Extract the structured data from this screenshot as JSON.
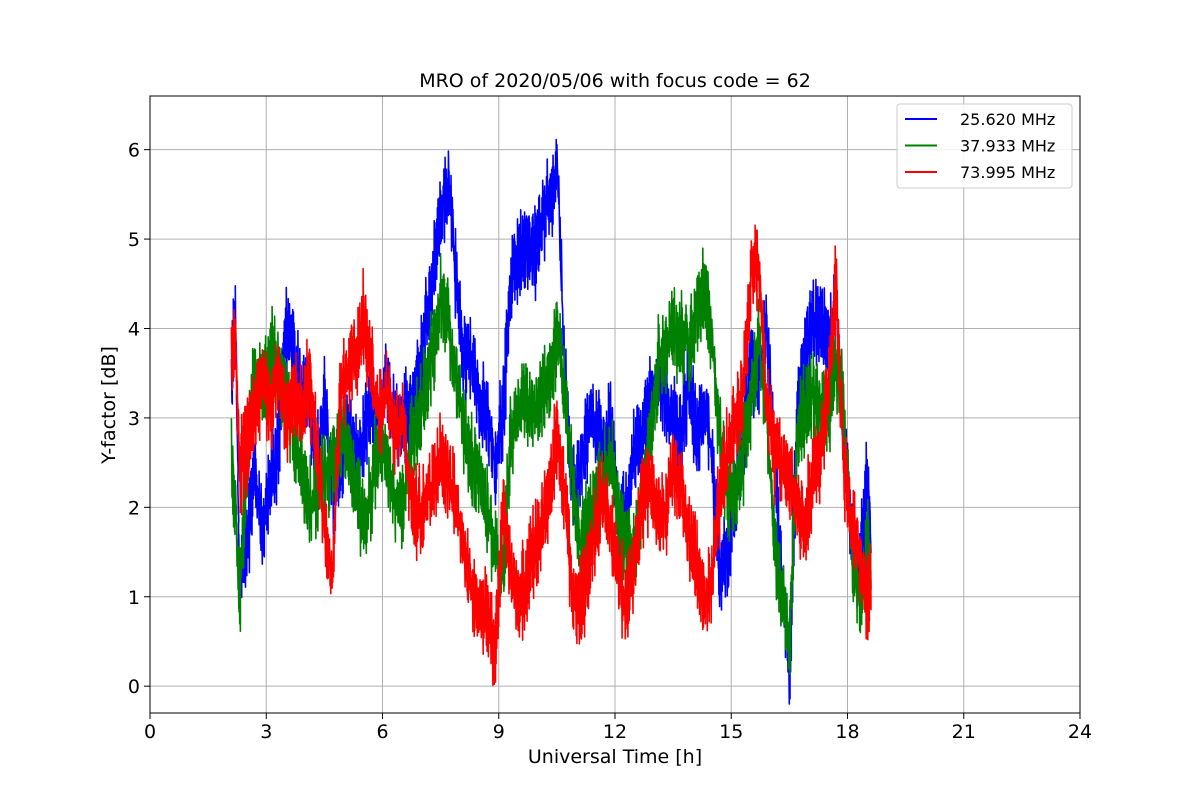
{
  "chart_data": {
    "type": "line",
    "title": "MRO of 2020/05/06 with focus code = 62",
    "xlabel": "Universal Time [h]",
    "ylabel": "Y-factor [dB]",
    "xlim": [
      0,
      24
    ],
    "ylim": [
      -0.3,
      6.6
    ],
    "xticks": [
      0,
      3,
      6,
      9,
      12,
      15,
      18,
      21,
      24
    ],
    "yticks": [
      0,
      1,
      2,
      3,
      4,
      5,
      6
    ],
    "grid": true,
    "legend_position": "top-right",
    "series": [
      {
        "name": "25.620 MHz",
        "color": "#0000ff",
        "x": [
          2.1,
          2.2,
          2.3,
          2.5,
          2.7,
          2.9,
          3.1,
          3.3,
          3.5,
          3.7,
          3.9,
          4.1,
          4.3,
          4.5,
          4.7,
          4.9,
          5.1,
          5.3,
          5.5,
          5.7,
          5.9,
          6.1,
          6.3,
          6.5,
          6.7,
          6.9,
          7.1,
          7.3,
          7.5,
          7.7,
          7.9,
          8.1,
          8.3,
          8.5,
          8.7,
          8.9,
          9.1,
          9.3,
          9.5,
          9.7,
          9.9,
          10.1,
          10.3,
          10.5,
          10.7,
          10.9,
          11.1,
          11.3,
          11.5,
          11.7,
          11.9,
          12.1,
          12.3,
          12.5,
          12.7,
          12.9,
          13.1,
          13.3,
          13.5,
          13.7,
          13.9,
          14.1,
          14.3,
          14.5,
          14.7,
          14.9,
          15.1,
          15.3,
          15.5,
          15.7,
          15.9,
          16.1,
          16.3,
          16.5,
          16.7,
          16.9,
          17.1,
          17.3,
          17.5,
          17.7,
          17.9,
          18.1,
          18.3,
          18.5,
          18.6
        ],
        "y": [
          3.5,
          4.2,
          1.2,
          1.6,
          2.5,
          1.7,
          2.4,
          2.6,
          4.0,
          3.8,
          3.3,
          3.2,
          2.4,
          3.2,
          2.2,
          2.5,
          2.9,
          2.5,
          2.8,
          3.3,
          2.9,
          3.4,
          3.0,
          3.0,
          3.1,
          3.3,
          4.0,
          4.6,
          5.3,
          5.6,
          4.5,
          3.6,
          3.7,
          3.2,
          3.0,
          2.4,
          3.1,
          4.5,
          4.8,
          4.9,
          4.8,
          5.2,
          5.5,
          5.8,
          3.5,
          2.1,
          2.4,
          2.9,
          3.0,
          2.7,
          2.9,
          1.7,
          2.0,
          2.6,
          2.8,
          3.2,
          3.5,
          3.2,
          3.0,
          2.7,
          3.4,
          2.8,
          3.1,
          2.6,
          1.3,
          1.4,
          2.2,
          2.8,
          3.5,
          3.4,
          4.0,
          2.6,
          1.1,
          0.2,
          3.2,
          3.6,
          4.0,
          4.1,
          3.8,
          4.3,
          2.7,
          1.7,
          1.3,
          2.3,
          1.5
        ]
      },
      {
        "name": "37.933 MHz",
        "color": "#008000",
        "x": [
          2.1,
          2.2,
          2.3,
          2.5,
          2.7,
          2.9,
          3.1,
          3.3,
          3.5,
          3.7,
          3.9,
          4.1,
          4.3,
          4.5,
          4.7,
          4.9,
          5.1,
          5.3,
          5.5,
          5.7,
          5.9,
          6.1,
          6.3,
          6.5,
          6.7,
          6.9,
          7.1,
          7.3,
          7.5,
          7.7,
          7.9,
          8.1,
          8.3,
          8.5,
          8.7,
          8.9,
          9.1,
          9.3,
          9.5,
          9.7,
          9.9,
          10.1,
          10.3,
          10.5,
          10.7,
          10.9,
          11.1,
          11.3,
          11.5,
          11.7,
          11.9,
          12.1,
          12.3,
          12.5,
          12.7,
          12.9,
          13.1,
          13.3,
          13.5,
          13.7,
          13.9,
          14.1,
          14.3,
          14.5,
          14.7,
          14.9,
          15.1,
          15.3,
          15.5,
          15.7,
          15.9,
          16.1,
          16.3,
          16.5,
          16.7,
          16.9,
          17.1,
          17.3,
          17.5,
          17.7,
          17.9,
          18.1,
          18.3,
          18.5,
          18.6
        ],
        "y": [
          2.5,
          2.0,
          1.0,
          2.6,
          3.6,
          3.3,
          3.7,
          3.6,
          3.3,
          2.8,
          2.5,
          2.0,
          2.2,
          2.4,
          2.5,
          2.8,
          2.6,
          2.2,
          1.9,
          2.2,
          2.8,
          2.5,
          2.1,
          2.0,
          2.6,
          3.0,
          3.3,
          3.8,
          4.4,
          4.0,
          3.5,
          2.9,
          2.5,
          2.3,
          1.9,
          1.5,
          1.2,
          2.8,
          3.1,
          3.2,
          3.0,
          3.3,
          3.4,
          4.0,
          3.3,
          2.3,
          1.6,
          1.9,
          2.1,
          2.3,
          2.6,
          1.8,
          1.6,
          1.5,
          2.2,
          2.7,
          3.6,
          3.8,
          4.0,
          3.9,
          3.8,
          4.2,
          4.4,
          3.9,
          2.8,
          2.1,
          2.2,
          2.6,
          3.2,
          3.9,
          3.0,
          1.6,
          1.0,
          0.5,
          2.9,
          3.1,
          3.3,
          3.0,
          3.1,
          3.6,
          3.1,
          1.5,
          0.9,
          1.6,
          1.3
        ]
      },
      {
        "name": "73.995 MHz",
        "color": "#ff0000",
        "x": [
          2.1,
          2.2,
          2.3,
          2.5,
          2.7,
          2.9,
          3.1,
          3.3,
          3.5,
          3.7,
          3.9,
          4.1,
          4.3,
          4.5,
          4.7,
          4.9,
          5.1,
          5.3,
          5.5,
          5.7,
          5.9,
          6.1,
          6.3,
          6.5,
          6.7,
          6.9,
          7.1,
          7.3,
          7.5,
          7.7,
          7.9,
          8.1,
          8.3,
          8.5,
          8.7,
          8.9,
          9.1,
          9.3,
          9.5,
          9.7,
          9.9,
          10.1,
          10.3,
          10.5,
          10.7,
          10.9,
          11.1,
          11.3,
          11.5,
          11.7,
          11.9,
          12.1,
          12.3,
          12.5,
          12.7,
          12.9,
          13.1,
          13.3,
          13.5,
          13.7,
          13.9,
          14.1,
          14.3,
          14.5,
          14.7,
          14.9,
          15.1,
          15.3,
          15.5,
          15.7,
          15.9,
          16.1,
          16.3,
          16.5,
          16.7,
          16.9,
          17.1,
          17.3,
          17.5,
          17.7,
          17.9,
          18.1,
          18.3,
          18.5,
          18.6
        ],
        "y": [
          3.7,
          3.9,
          2.4,
          2.7,
          3.2,
          3.4,
          3.1,
          3.6,
          3.0,
          3.2,
          3.1,
          3.4,
          2.7,
          1.8,
          1.2,
          3.3,
          3.5,
          3.7,
          4.1,
          3.6,
          3.0,
          3.3,
          2.8,
          3.0,
          2.2,
          1.9,
          2.1,
          2.3,
          2.5,
          2.3,
          2.0,
          1.5,
          1.0,
          0.9,
          0.8,
          0.3,
          2.0,
          1.3,
          0.9,
          1.2,
          1.5,
          1.8,
          2.2,
          2.8,
          2.1,
          1.0,
          0.9,
          1.3,
          1.8,
          2.2,
          1.7,
          1.2,
          0.9,
          1.5,
          2.1,
          2.3,
          1.9,
          2.0,
          2.4,
          2.2,
          1.7,
          1.3,
          1.0,
          1.2,
          2.2,
          2.6,
          3.0,
          3.3,
          4.6,
          4.7,
          3.2,
          2.6,
          2.5,
          2.3,
          2.0,
          1.8,
          2.4,
          2.6,
          3.4,
          4.5,
          2.4,
          1.9,
          1.4,
          1.0,
          1.2
        ]
      }
    ]
  }
}
